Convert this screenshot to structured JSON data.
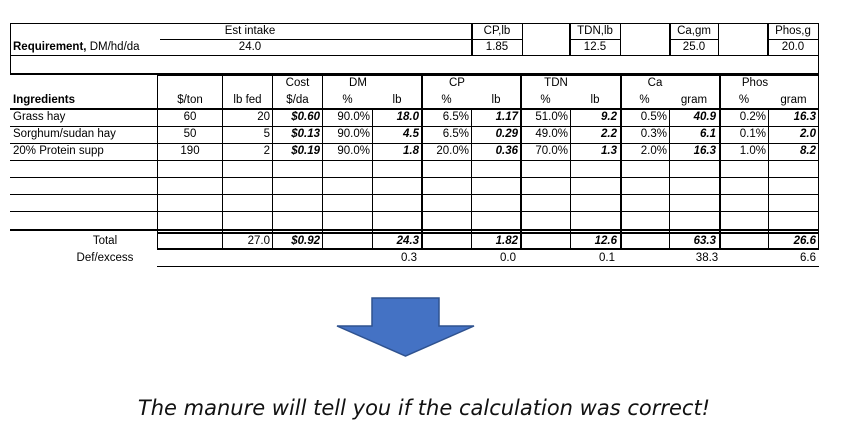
{
  "requirement": {
    "row_label_bold": "Requirement,",
    "row_label_rest": " DM/hd/da",
    "est_intake": {
      "header": "Est intake",
      "value": "24.0"
    },
    "cp": {
      "header": "CP,lb",
      "value": "1.85"
    },
    "tdn": {
      "header": "TDN,lb",
      "value": "12.5"
    },
    "ca": {
      "header": "Ca,gm",
      "value": "25.0"
    },
    "phos": {
      "header": "Phos,g",
      "value": "20.0"
    }
  },
  "headers": {
    "ingredients": "Ingredients",
    "price": "$/ton",
    "lbfed": "lb fed",
    "cost_top": "Cost",
    "cost_bottom": "$/da",
    "dm": "DM",
    "cp": "CP",
    "tdn": "TDN",
    "ca": "Ca",
    "phos": "Phos",
    "pct": "%",
    "lb": "lb",
    "gram": "gram"
  },
  "ingredients": [
    {
      "name": "Grass hay",
      "price": "60",
      "lbfed": "20",
      "cost": "$0.60",
      "dm_pct": "90.0%",
      "dm_lb": "18.0",
      "cp_pct": "6.5%",
      "cp_lb": "1.17",
      "tdn_pct": "51.0%",
      "tdn_lb": "9.2",
      "ca_pct": "0.5%",
      "ca_g": "40.9",
      "phos_pct": "0.2%",
      "phos_g": "16.3"
    },
    {
      "name": "Sorghum/sudan hay",
      "price": "50",
      "lbfed": "5",
      "cost": "$0.13",
      "dm_pct": "90.0%",
      "dm_lb": "4.5",
      "cp_pct": "6.5%",
      "cp_lb": "0.29",
      "tdn_pct": "49.0%",
      "tdn_lb": "2.2",
      "ca_pct": "0.3%",
      "ca_g": "6.1",
      "phos_pct": "0.1%",
      "phos_g": "2.0"
    },
    {
      "name": "20% Protein supp",
      "price": "190",
      "lbfed": "2",
      "cost": "$0.19",
      "dm_pct": "90.0%",
      "dm_lb": "1.8",
      "cp_pct": "20.0%",
      "cp_lb": "0.36",
      "tdn_pct": "70.0%",
      "tdn_lb": "1.3",
      "ca_pct": "2.0%",
      "ca_g": "16.3",
      "phos_pct": "1.0%",
      "phos_g": "8.2"
    }
  ],
  "total": {
    "label": "Total",
    "lbfed": "27.0",
    "cost": "$0.92",
    "dm_lb": "24.3",
    "cp_lb": "1.82",
    "tdn_lb": "12.6",
    "ca_g": "63.3",
    "phos_g": "26.6"
  },
  "defexcess": {
    "label": "Def/excess",
    "dm": "0.3",
    "cp": "0.0",
    "tdn": "0.1",
    "ca": "38.3",
    "phos": "6.6"
  },
  "arrow": {
    "color": "#4472c4",
    "icon": "down-arrow-icon"
  },
  "caption": "The manure will tell you if the calculation was correct!"
}
